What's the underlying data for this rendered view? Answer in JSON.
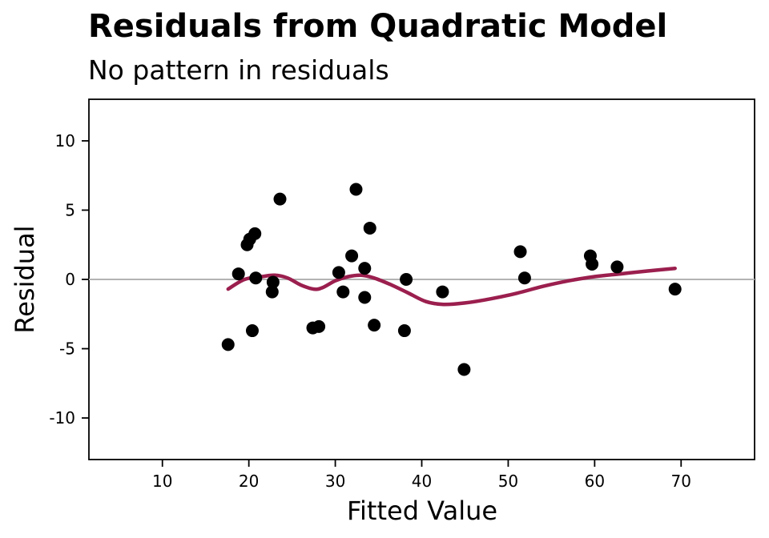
{
  "chart_data": {
    "type": "scatter",
    "title": "Residuals from Quadratic Model",
    "subtitle": "No pattern in residuals",
    "xlabel": "Fitted Value",
    "ylabel": "Residual",
    "xlim": [
      1.5,
      78.5
    ],
    "ylim": [
      -13,
      13
    ],
    "x_ticks": [
      10,
      20,
      30,
      40,
      50,
      60,
      70
    ],
    "y_ticks": [
      10,
      5,
      0,
      -5,
      -10
    ],
    "y_tick_labels": [
      "10",
      "5",
      "0",
      "-5",
      "-10"
    ],
    "grid": false,
    "reference_line": {
      "y": 0,
      "color": "#b3b3b3"
    },
    "point_color": "#000000",
    "smooth_color": "#9b1f4e",
    "points": [
      {
        "x": 17.6,
        "y": -4.7
      },
      {
        "x": 18.8,
        "y": 0.4
      },
      {
        "x": 19.8,
        "y": 2.5
      },
      {
        "x": 20.1,
        "y": 2.9
      },
      {
        "x": 20.4,
        "y": -3.7
      },
      {
        "x": 20.7,
        "y": 3.3
      },
      {
        "x": 20.8,
        "y": 0.1
      },
      {
        "x": 22.7,
        "y": -0.9
      },
      {
        "x": 22.8,
        "y": -0.2
      },
      {
        "x": 23.6,
        "y": 5.8
      },
      {
        "x": 27.4,
        "y": -3.5
      },
      {
        "x": 28.1,
        "y": -3.4
      },
      {
        "x": 30.4,
        "y": 0.5
      },
      {
        "x": 30.9,
        "y": -0.9
      },
      {
        "x": 31.9,
        "y": 1.7
      },
      {
        "x": 32.4,
        "y": 6.5
      },
      {
        "x": 33.4,
        "y": 0.8
      },
      {
        "x": 33.4,
        "y": -1.3
      },
      {
        "x": 34.0,
        "y": 3.7
      },
      {
        "x": 34.5,
        "y": -3.3
      },
      {
        "x": 38.0,
        "y": -3.7
      },
      {
        "x": 38.2,
        "y": 0.0
      },
      {
        "x": 42.4,
        "y": -0.9
      },
      {
        "x": 44.9,
        "y": -6.5
      },
      {
        "x": 51.4,
        "y": 2.0
      },
      {
        "x": 51.9,
        "y": 0.1
      },
      {
        "x": 59.5,
        "y": 1.7
      },
      {
        "x": 59.7,
        "y": 1.1
      },
      {
        "x": 62.6,
        "y": 0.9
      },
      {
        "x": 69.3,
        "y": -0.7
      }
    ],
    "smooth": [
      {
        "x": 17.6,
        "y": -0.7
      },
      {
        "x": 19.5,
        "y": 0.0
      },
      {
        "x": 21.5,
        "y": 0.2
      },
      {
        "x": 23.0,
        "y": 0.3
      },
      {
        "x": 24.5,
        "y": 0.1
      },
      {
        "x": 26.0,
        "y": -0.4
      },
      {
        "x": 27.5,
        "y": -0.7
      },
      {
        "x": 28.5,
        "y": -0.6
      },
      {
        "x": 30.0,
        "y": -0.1
      },
      {
        "x": 31.5,
        "y": 0.2
      },
      {
        "x": 33.0,
        "y": 0.3
      },
      {
        "x": 34.5,
        "y": 0.1
      },
      {
        "x": 36.5,
        "y": -0.4
      },
      {
        "x": 38.5,
        "y": -1.0
      },
      {
        "x": 40.5,
        "y": -1.6
      },
      {
        "x": 42.5,
        "y": -1.8
      },
      {
        "x": 45.0,
        "y": -1.7
      },
      {
        "x": 48.0,
        "y": -1.4
      },
      {
        "x": 51.0,
        "y": -1.0
      },
      {
        "x": 54.0,
        "y": -0.5
      },
      {
        "x": 57.0,
        "y": -0.1
      },
      {
        "x": 60.0,
        "y": 0.2
      },
      {
        "x": 63.0,
        "y": 0.4
      },
      {
        "x": 66.0,
        "y": 0.6
      },
      {
        "x": 69.3,
        "y": 0.8
      }
    ]
  }
}
